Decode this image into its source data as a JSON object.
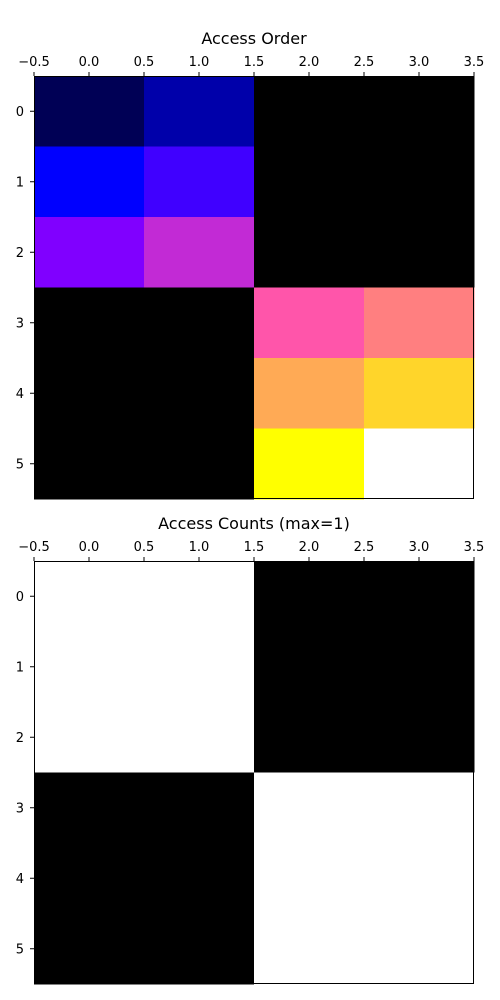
{
  "chart_data": [
    {
      "type": "heatmap",
      "title": "Access Order",
      "xlim": [
        -0.5,
        3.5
      ],
      "ylim": [
        5.5,
        -0.5
      ],
      "x_ticks": [
        "−0.5",
        "0.0",
        "0.5",
        "1.0",
        "1.5",
        "2.0",
        "2.5",
        "3.0",
        "3.5"
      ],
      "y_ticks": [
        "0",
        "1",
        "2",
        "3",
        "4",
        "5"
      ],
      "colormap": "gnuplot2",
      "grid": false,
      "cells": [
        {
          "row": 0,
          "col": 0,
          "value": 1,
          "color": "#000055"
        },
        {
          "row": 0,
          "col": 1,
          "value": 2,
          "color": "#0000aa"
        },
        {
          "row": 0,
          "col": 2,
          "value": 0,
          "color": "#000000"
        },
        {
          "row": 0,
          "col": 3,
          "value": 0,
          "color": "#000000"
        },
        {
          "row": 1,
          "col": 0,
          "value": 3,
          "color": "#0000ff"
        },
        {
          "row": 1,
          "col": 1,
          "value": 4,
          "color": "#4000ff"
        },
        {
          "row": 1,
          "col": 2,
          "value": 0,
          "color": "#000000"
        },
        {
          "row": 1,
          "col": 3,
          "value": 0,
          "color": "#000000"
        },
        {
          "row": 2,
          "col": 0,
          "value": 5,
          "color": "#8000ff"
        },
        {
          "row": 2,
          "col": 1,
          "value": 6,
          "color": "#c22ad5"
        },
        {
          "row": 2,
          "col": 2,
          "value": 0,
          "color": "#000000"
        },
        {
          "row": 2,
          "col": 3,
          "value": 0,
          "color": "#000000"
        },
        {
          "row": 3,
          "col": 0,
          "value": 0,
          "color": "#000000"
        },
        {
          "row": 3,
          "col": 1,
          "value": 0,
          "color": "#000000"
        },
        {
          "row": 3,
          "col": 2,
          "value": 7,
          "color": "#ff55aa"
        },
        {
          "row": 3,
          "col": 3,
          "value": 8,
          "color": "#ff7f80"
        },
        {
          "row": 4,
          "col": 0,
          "value": 0,
          "color": "#000000"
        },
        {
          "row": 4,
          "col": 1,
          "value": 0,
          "color": "#000000"
        },
        {
          "row": 4,
          "col": 2,
          "value": 9,
          "color": "#ffaa55"
        },
        {
          "row": 4,
          "col": 3,
          "value": 10,
          "color": "#ffd52a"
        },
        {
          "row": 5,
          "col": 0,
          "value": 0,
          "color": "#000000"
        },
        {
          "row": 5,
          "col": 1,
          "value": 0,
          "color": "#000000"
        },
        {
          "row": 5,
          "col": 2,
          "value": 11,
          "color": "#ffff00"
        },
        {
          "row": 5,
          "col": 3,
          "value": 12,
          "color": "#ffffff"
        }
      ]
    },
    {
      "type": "heatmap",
      "title": "Access Counts (max=1)",
      "xlim": [
        -0.5,
        3.5
      ],
      "ylim": [
        5.5,
        -0.5
      ],
      "x_ticks": [
        "−0.5",
        "0.0",
        "0.5",
        "1.0",
        "1.5",
        "2.0",
        "2.5",
        "3.0",
        "3.5"
      ],
      "y_ticks": [
        "0",
        "1",
        "2",
        "3",
        "4",
        "5"
      ],
      "colormap": "gray",
      "grid": false,
      "cells": [
        {
          "row": 0,
          "col": 0,
          "value": 1,
          "color": "#ffffff"
        },
        {
          "row": 0,
          "col": 1,
          "value": 1,
          "color": "#ffffff"
        },
        {
          "row": 0,
          "col": 2,
          "value": 0,
          "color": "#000000"
        },
        {
          "row": 0,
          "col": 3,
          "value": 0,
          "color": "#000000"
        },
        {
          "row": 1,
          "col": 0,
          "value": 1,
          "color": "#ffffff"
        },
        {
          "row": 1,
          "col": 1,
          "value": 1,
          "color": "#ffffff"
        },
        {
          "row": 1,
          "col": 2,
          "value": 0,
          "color": "#000000"
        },
        {
          "row": 1,
          "col": 3,
          "value": 0,
          "color": "#000000"
        },
        {
          "row": 2,
          "col": 0,
          "value": 1,
          "color": "#ffffff"
        },
        {
          "row": 2,
          "col": 1,
          "value": 1,
          "color": "#ffffff"
        },
        {
          "row": 2,
          "col": 2,
          "value": 0,
          "color": "#000000"
        },
        {
          "row": 2,
          "col": 3,
          "value": 0,
          "color": "#000000"
        },
        {
          "row": 3,
          "col": 0,
          "value": 0,
          "color": "#000000"
        },
        {
          "row": 3,
          "col": 1,
          "value": 0,
          "color": "#000000"
        },
        {
          "row": 3,
          "col": 2,
          "value": 1,
          "color": "#ffffff"
        },
        {
          "row": 3,
          "col": 3,
          "value": 1,
          "color": "#ffffff"
        },
        {
          "row": 4,
          "col": 0,
          "value": 0,
          "color": "#000000"
        },
        {
          "row": 4,
          "col": 1,
          "value": 0,
          "color": "#000000"
        },
        {
          "row": 4,
          "col": 2,
          "value": 1,
          "color": "#ffffff"
        },
        {
          "row": 4,
          "col": 3,
          "value": 1,
          "color": "#ffffff"
        },
        {
          "row": 5,
          "col": 0,
          "value": 0,
          "color": "#000000"
        },
        {
          "row": 5,
          "col": 1,
          "value": 0,
          "color": "#000000"
        },
        {
          "row": 5,
          "col": 2,
          "value": 1,
          "color": "#ffffff"
        },
        {
          "row": 5,
          "col": 3,
          "value": 1,
          "color": "#ffffff"
        }
      ]
    }
  ]
}
